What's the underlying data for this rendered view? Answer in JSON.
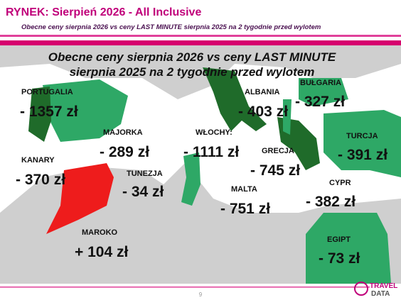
{
  "header": {
    "title": "RYNEK: Sierpień 2026 - All Inclusive",
    "subtitle": "Obecne ceny sierpnia 2026 vs ceny LAST MINUTE sierpnia 2025 na 2 tygodnie przed wylotem"
  },
  "map": {
    "heading": [
      "Obecne ceny sierpnia 2026 vs ceny LAST MINUTE",
      "sierpnia 2025 na 2 tygodnie przed wylotem"
    ],
    "regions": [
      {
        "label": "PORTUGALIA",
        "value": "- 1357 zł"
      },
      {
        "label": "MAJORKA",
        "value": "- 289 zł"
      },
      {
        "label": "KANARY",
        "value": "- 370 zł"
      },
      {
        "label": "TUNEZJA",
        "value": "- 34 zł"
      },
      {
        "label": "MAROKO",
        "value": "+ 104 zł"
      },
      {
        "label": "WŁOCHY:",
        "value": "- 1111 zł"
      },
      {
        "label": "ALBANIA",
        "value": "- 403 zł"
      },
      {
        "label": "BUŁGARIA",
        "value": "- 327 zł"
      },
      {
        "label": "GRECJA",
        "value": "- 745 zł"
      },
      {
        "label": "TURCJA",
        "value": "- 391 zł"
      },
      {
        "label": "MALTA",
        "value": "- 751 zł"
      },
      {
        "label": "CYPR",
        "value": "- 382 zł"
      },
      {
        "label": "EGIPT",
        "value": "- 73 zł"
      }
    ]
  },
  "footer": {
    "page": "9",
    "logo": [
      "TRAVEL",
      "DATA"
    ]
  }
}
